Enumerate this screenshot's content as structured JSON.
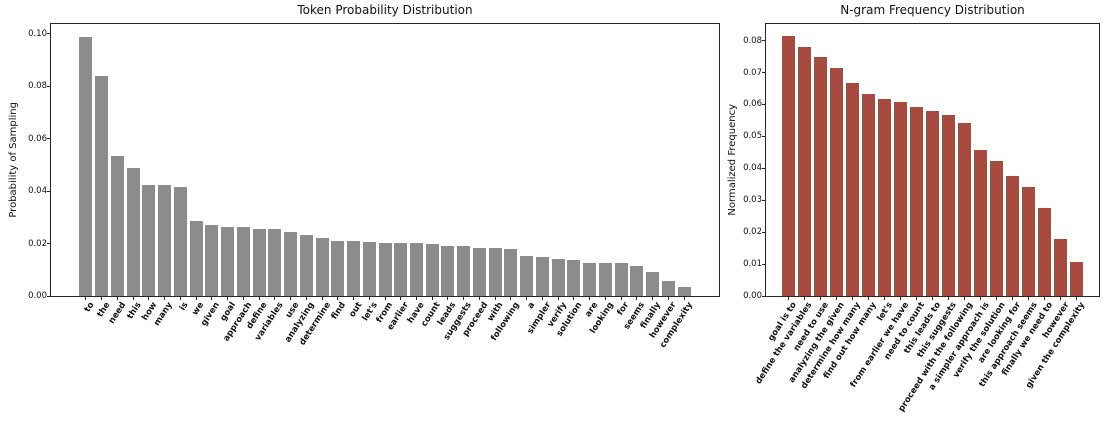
{
  "chart_data": [
    {
      "type": "bar",
      "title": "Token Probability Distribution",
      "xlabel": "",
      "ylabel": "Probability of Sampling",
      "bar_color": "#8c8c8c",
      "grid": false,
      "legend": false,
      "ylim": [
        0,
        0.1038
      ],
      "yticks": [
        0.0,
        0.02,
        0.04,
        0.06,
        0.08,
        0.1
      ],
      "categories": [
        "to",
        "the",
        "need",
        "this",
        "how",
        "many",
        "is",
        "we",
        "given",
        "goal",
        "approach",
        "define",
        "variables",
        "use",
        "analyzing",
        "determine",
        "find",
        "out",
        "let's",
        "from",
        "earlier",
        "have",
        "count",
        "leads",
        "suggests",
        "proceed",
        "with",
        "following",
        "a",
        "simpler",
        "verify",
        "solution",
        "are",
        "looking",
        "for",
        "seems",
        "finally",
        "however",
        "complexity"
      ],
      "values": [
        0.099,
        0.084,
        0.0533,
        0.049,
        0.0425,
        0.0425,
        0.0415,
        0.0288,
        0.027,
        0.0265,
        0.0262,
        0.0257,
        0.0256,
        0.0245,
        0.0232,
        0.022,
        0.021,
        0.0209,
        0.0206,
        0.0203,
        0.0202,
        0.0201,
        0.0198,
        0.0191,
        0.019,
        0.0185,
        0.0183,
        0.0181,
        0.0152,
        0.015,
        0.0141,
        0.0139,
        0.0127,
        0.0126,
        0.0125,
        0.0116,
        0.0092,
        0.0059,
        0.0036
      ]
    },
    {
      "type": "bar",
      "title": "N-gram Frequency Distribution",
      "xlabel": "",
      "ylabel": "Normalized Frequency",
      "bar_color": "#a54b40",
      "grid": false,
      "legend": false,
      "ylim": [
        0,
        0.0852
      ],
      "yticks": [
        0.0,
        0.01,
        0.02,
        0.03,
        0.04,
        0.05,
        0.06,
        0.07,
        0.08
      ],
      "categories": [
        "goal is to",
        "define the variables",
        "need to use",
        "analyzing the given",
        "determine how many",
        "find out how many",
        "let's",
        "from earlier we have",
        "need to count",
        "this leads to",
        "this suggests",
        "proceed with the following",
        "a simpler approach is",
        "verify the solution",
        "are looking for",
        "this approach seems",
        "finally we need to",
        "however",
        "given the complexity"
      ],
      "values": [
        0.0815,
        0.078,
        0.0748,
        0.0713,
        0.0667,
        0.0633,
        0.0617,
        0.0608,
        0.0593,
        0.0578,
        0.0567,
        0.0542,
        0.0456,
        0.0422,
        0.0375,
        0.0341,
        0.0276,
        0.018,
        0.0105
      ]
    }
  ]
}
